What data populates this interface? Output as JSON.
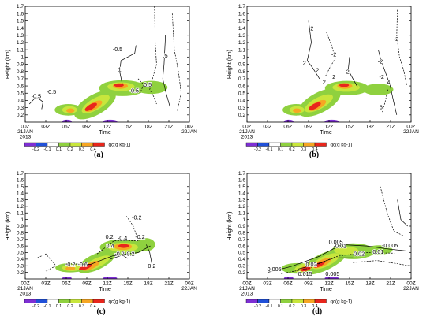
{
  "chart_data": [
    {
      "type": "heatmap",
      "panel_label": "(a)",
      "ylabel": "Height (km)",
      "xlabel": "Time",
      "y_ticks": [
        "0.2",
        "0.3",
        "0.4",
        "0.5",
        "0.6",
        "0.7",
        "0.8",
        "0.9",
        "1",
        "1.1",
        "1.2",
        "1.3",
        "1.4",
        "1.5",
        "1.6",
        "1.7"
      ],
      "ylim": [
        0.1,
        1.7
      ],
      "x_ticks": [
        "00Z",
        "03Z",
        "06Z",
        "09Z",
        "12Z",
        "15Z",
        "18Z",
        "21Z",
        "00Z"
      ],
      "x_dates": [
        "21JAN",
        "22JAN"
      ],
      "x_year": "2013",
      "colorbar": {
        "label": "qc(g kg-1)",
        "ticks": [
          "-0.2",
          "-0.1",
          "0.1",
          "0.2",
          "0.3",
          "0.4"
        ]
      },
      "contour_labels": [
        {
          "text": "-0.5",
          "t": 13.5,
          "h": 1.08
        },
        {
          "text": "-0.5",
          "t": 3.8,
          "h": 0.49
        },
        {
          "text": "-0.5",
          "t": 1.6,
          "h": 0.43
        },
        {
          "text": "-0.5",
          "t": 15.9,
          "h": 0.51
        },
        {
          "text": "0.5",
          "t": 17.9,
          "h": 0.59
        },
        {
          "text": ".5",
          "t": 20.5,
          "h": 0.99
        },
        {
          "text": "1",
          "t": 13.8,
          "h": 0.8
        }
      ]
    },
    {
      "type": "heatmap",
      "panel_label": "(b)",
      "ylabel": "Height (km)",
      "xlabel": "Time",
      "y_ticks": [
        "0.2",
        "0.3",
        "0.4",
        "0.5",
        "0.6",
        "0.7",
        "0.8",
        "0.9",
        "1",
        "1.1",
        "1.2",
        "1.3",
        "1.4",
        "1.5",
        "1.6",
        "1.7"
      ],
      "ylim": [
        0.1,
        1.7
      ],
      "x_ticks": [
        "00Z",
        "03Z",
        "06Z",
        "09Z",
        "12Z",
        "15Z",
        "18Z",
        "21Z",
        "00Z"
      ],
      "x_dates": [
        "21JAN",
        "22JAN"
      ],
      "x_year": "2013",
      "colorbar": {
        "label": "qc(g kg-1)",
        "ticks": [
          "-0.2",
          "-0.1",
          "0.1",
          "0.2",
          "0.3",
          "0.4"
        ]
      },
      "contour_labels": [
        {
          "text": "2",
          "t": 9.5,
          "h": 1.37
        },
        {
          "text": "-2",
          "t": 21.8,
          "h": 1.22
        },
        {
          "text": "-2",
          "t": 12.7,
          "h": 1.01
        },
        {
          "text": "2",
          "t": 8.4,
          "h": 0.89
        },
        {
          "text": "2",
          "t": 10.3,
          "h": 0.79
        },
        {
          "text": "-2",
          "t": 19.5,
          "h": 0.91
        },
        {
          "text": "-2",
          "t": 14.6,
          "h": 0.77
        },
        {
          "text": "2",
          "t": 12.7,
          "h": 0.7
        },
        {
          "text": "2",
          "t": 11.3,
          "h": 0.63
        },
        {
          "text": "-2",
          "t": 19.7,
          "h": 0.7
        },
        {
          "text": "4",
          "t": 20.7,
          "h": 0.62
        },
        {
          "text": "6",
          "t": 19.6,
          "h": 0.28
        }
      ]
    },
    {
      "type": "heatmap",
      "panel_label": "(c)",
      "ylabel": "Height (km)",
      "xlabel": "Time",
      "y_ticks": [
        "0.2",
        "0.3",
        "0.4",
        "0.5",
        "0.6",
        "0.7",
        "0.8",
        "0.9",
        "1",
        "1.1",
        "1.2",
        "1.3",
        "1.4",
        "1.5",
        "1.6",
        "1.7"
      ],
      "ylim": [
        0.1,
        1.7
      ],
      "x_ticks": [
        "00Z",
        "03Z",
        "06Z",
        "09Z",
        "12Z",
        "15Z",
        "18Z",
        "21Z",
        "00Z"
      ],
      "x_dates": [
        "21JAN",
        "22JAN"
      ],
      "x_year": "2013",
      "colorbar": {
        "label": "qc(g kg-1)",
        "ticks": [
          "-0.2",
          "-0.1",
          "0.1",
          "0.2",
          "0.3",
          "0.4"
        ]
      },
      "contour_labels": [
        {
          "text": "-0.2",
          "t": 16.3,
          "h": 1.0
        },
        {
          "text": "0.2",
          "t": 12.3,
          "h": 0.71
        },
        {
          "text": "-0.4",
          "t": 14.2,
          "h": 0.69
        },
        {
          "text": "-0.2",
          "t": 16.8,
          "h": 0.71
        },
        {
          "text": "0.4",
          "t": 12.4,
          "h": 0.57
        },
        {
          "text": "-0.2",
          "t": 13.8,
          "h": 0.45
        },
        {
          "text": "0.2",
          "t": 15.4,
          "h": 0.45
        },
        {
          "text": "-0.2",
          "t": 6.6,
          "h": 0.29
        },
        {
          "text": "-0.6",
          "t": 8.4,
          "h": 0.29
        },
        {
          "text": "0.2",
          "t": 18.5,
          "h": 0.27
        }
      ]
    },
    {
      "type": "heatmap",
      "panel_label": "(d)",
      "ylabel": "Height (km)",
      "xlabel": "Time",
      "y_ticks": [
        "0.2",
        "0.3",
        "0.4",
        "0.5",
        "0.6",
        "0.7",
        "0.8",
        "0.9",
        "1",
        "1.1",
        "1.2",
        "1.3",
        "1.4",
        "1.5",
        "1.6",
        "1.7"
      ],
      "ylim": [
        0.1,
        1.7
      ],
      "x_ticks": [
        "00Z",
        "03Z",
        "06Z",
        "09Z",
        "12Z",
        "15Z",
        "18Z",
        "21Z",
        "00Z"
      ],
      "x_dates": [
        "21JAN",
        "22JAN"
      ],
      "x_year": "2013",
      "colorbar": {
        "label": "qc(g kg-1)",
        "ticks": [
          "-0.2",
          "-0.1",
          "0.1",
          "0.2",
          "0.3",
          "0.4"
        ]
      },
      "contour_labels": [
        {
          "text": "0.005",
          "t": 13.0,
          "h": 0.63
        },
        {
          "text": "-0.01",
          "t": 13.6,
          "h": 0.57
        },
        {
          "text": "-0.005",
          "t": 20.9,
          "h": 0.58
        },
        {
          "text": "0.02",
          "t": 16.4,
          "h": 0.45
        },
        {
          "text": "0.01",
          "t": 19.2,
          "h": 0.48
        },
        {
          "text": "0.005",
          "t": 4.0,
          "h": 0.22
        },
        {
          "text": "0.02",
          "t": 9.4,
          "h": 0.29
        },
        {
          "text": "0.015",
          "t": 8.5,
          "h": 0.15
        },
        {
          "text": "0.005",
          "t": 12.5,
          "h": 0.15
        }
      ]
    }
  ]
}
